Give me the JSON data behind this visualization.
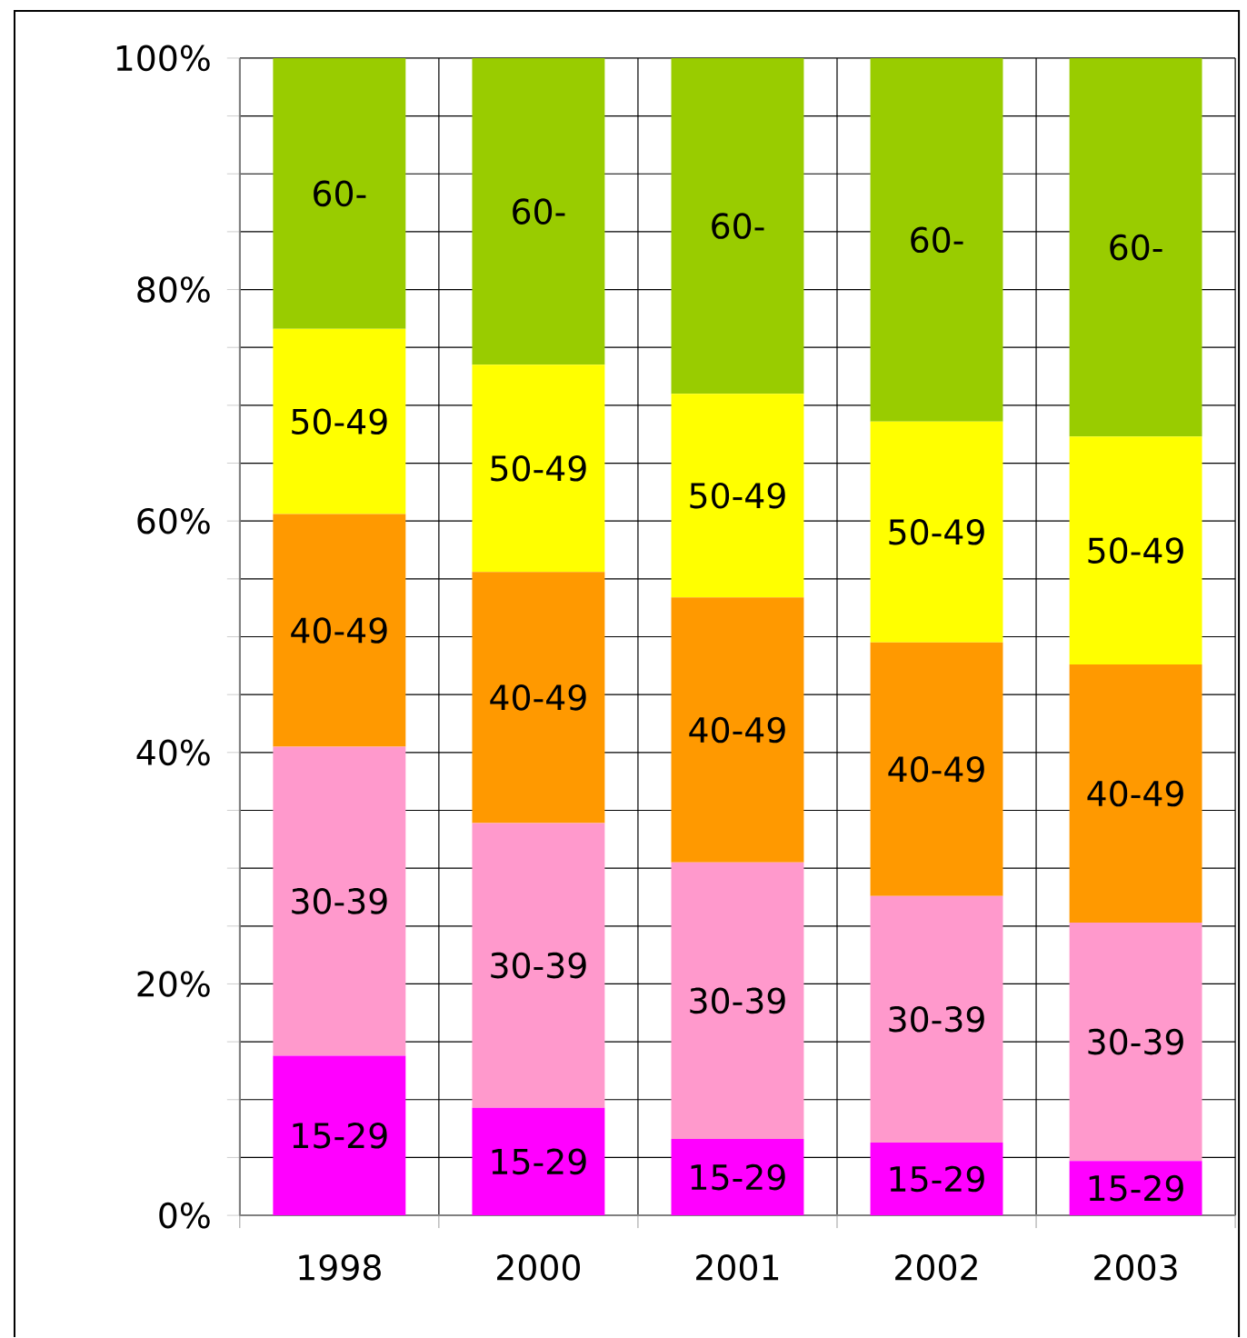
{
  "chart_data": {
    "type": "bar",
    "stacked": true,
    "categories": [
      "1998",
      "2000",
      "2001",
      "2002",
      "2003"
    ],
    "series": [
      {
        "name": "15-29",
        "color": "#ff00ff",
        "values": [
          13.8,
          9.3,
          6.6,
          6.3,
          4.7
        ]
      },
      {
        "name": "30-39",
        "color": "#ff99cc",
        "values": [
          26.7,
          24.6,
          23.9,
          21.3,
          20.6
        ]
      },
      {
        "name": "40-49",
        "color": "#ff9900",
        "values": [
          20.1,
          21.7,
          22.9,
          21.9,
          22.3
        ]
      },
      {
        "name": "50-49",
        "color": "#ffff00",
        "values": [
          16.0,
          17.9,
          17.6,
          19.1,
          19.7
        ]
      },
      {
        "name": "60-",
        "color": "#99cc00",
        "values": [
          23.4,
          26.5,
          29.0,
          31.4,
          32.7
        ]
      }
    ],
    "ylim": [
      0,
      100
    ],
    "yticks": [
      {
        "value": 0,
        "label": "0%"
      },
      {
        "value": 20,
        "label": "20%"
      },
      {
        "value": 40,
        "label": "40%"
      },
      {
        "value": 60,
        "label": "60%"
      },
      {
        "value": 80,
        "label": "80%"
      },
      {
        "value": 100,
        "label": "100%"
      }
    ],
    "grid": true
  }
}
